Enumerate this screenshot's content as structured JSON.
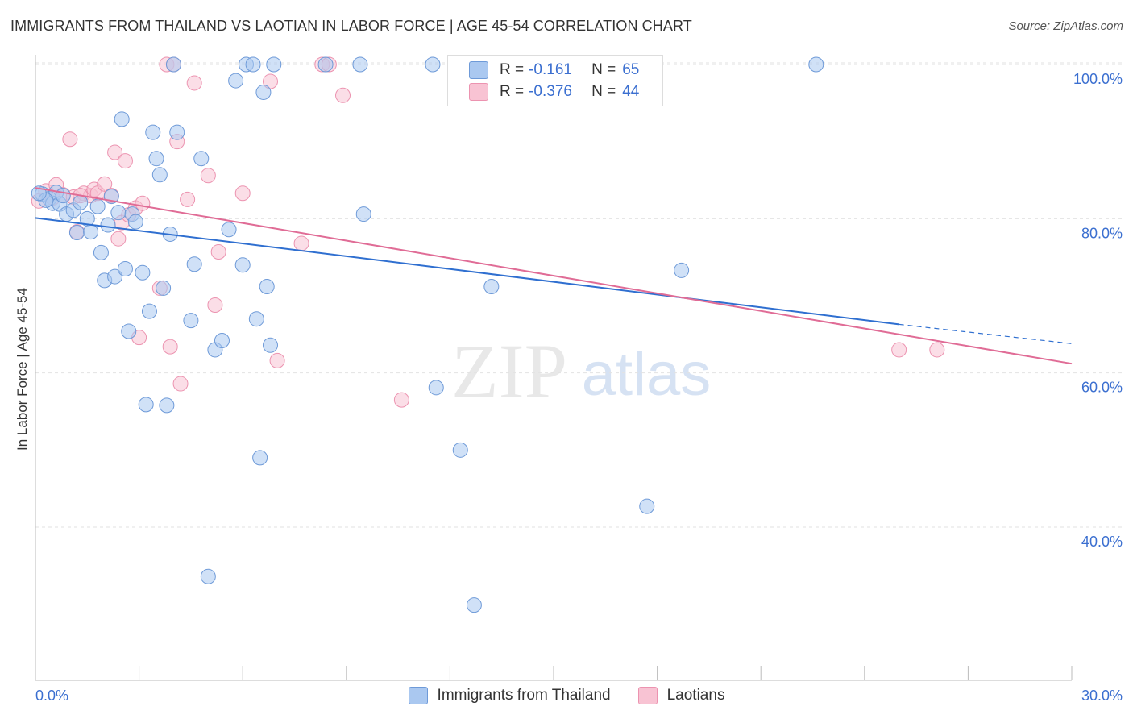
{
  "title": "IMMIGRANTS FROM THAILAND VS LAOTIAN IN LABOR FORCE | AGE 45-54 CORRELATION CHART",
  "source": "Source: ZipAtlas.com",
  "watermark": {
    "zip": "ZIP",
    "atlas": "atlas"
  },
  "legend": {
    "series1": {
      "r_label": "R =",
      "r_value": "-0.161",
      "n_label": "N =",
      "n_value": "65"
    },
    "series2": {
      "r_label": "R =",
      "r_value": "-0.376",
      "n_label": "N =",
      "n_value": "44"
    }
  },
  "bottom_legend": {
    "series1": "Immigrants from Thailand",
    "series2": "Laotians"
  },
  "colors": {
    "thailand_fill": "#aac8f0",
    "thailand_stroke": "#6e9ad8",
    "thailand_line": "#2f6fd0",
    "laotian_fill": "#f8c3d3",
    "laotian_stroke": "#ec93b0",
    "laotian_line": "#e06c96",
    "axis_text": "#3b6fd0",
    "grid": "#e2e2e2"
  },
  "chart_data": {
    "type": "scatter",
    "title": "IMMIGRANTS FROM THAILAND VS LAOTIAN IN LABOR FORCE | AGE 45-54 CORRELATION CHART",
    "xlabel": "",
    "ylabel": "In Labor Force | Age 45-54",
    "xlim": [
      0,
      30
    ],
    "ylim": [
      20,
      102
    ],
    "x_tick_labels": [
      "0.0%",
      "30.0%"
    ],
    "y_tick_labels": [
      "100.0%",
      "80.0%",
      "60.0%",
      "40.0%"
    ],
    "y_ticks": [
      100,
      80,
      60,
      40
    ],
    "grid": true,
    "legend_position": "top-center",
    "series": [
      {
        "name": "Immigrants from Thailand",
        "points": [
          [
            0.2,
            83.2
          ],
          [
            0.4,
            82.6
          ],
          [
            0.5,
            82.0
          ],
          [
            0.6,
            83.4
          ],
          [
            0.7,
            81.9
          ],
          [
            0.8,
            83.0
          ],
          [
            0.9,
            80.6
          ],
          [
            1.1,
            81.1
          ],
          [
            1.2,
            78.2
          ],
          [
            1.3,
            82.1
          ],
          [
            1.5,
            80.0
          ],
          [
            1.6,
            78.3
          ],
          [
            1.8,
            81.6
          ],
          [
            1.9,
            75.6
          ],
          [
            2.0,
            72.0
          ],
          [
            2.1,
            79.2
          ],
          [
            2.2,
            82.9
          ],
          [
            2.3,
            72.5
          ],
          [
            2.4,
            80.8
          ],
          [
            2.5,
            92.9
          ],
          [
            2.6,
            73.5
          ],
          [
            2.7,
            65.4
          ],
          [
            2.8,
            80.6
          ],
          [
            2.9,
            79.6
          ],
          [
            3.1,
            73.0
          ],
          [
            3.2,
            55.9
          ],
          [
            3.3,
            68.0
          ],
          [
            3.4,
            91.2
          ],
          [
            3.5,
            87.8
          ],
          [
            3.6,
            85.7
          ],
          [
            3.7,
            71.0
          ],
          [
            3.8,
            55.8
          ],
          [
            3.9,
            78.0
          ],
          [
            4.0,
            100.0
          ],
          [
            4.1,
            91.2
          ],
          [
            4.5,
            66.8
          ],
          [
            4.6,
            74.1
          ],
          [
            4.8,
            87.8
          ],
          [
            5.0,
            33.6
          ],
          [
            5.2,
            63.0
          ],
          [
            5.4,
            64.2
          ],
          [
            5.6,
            78.6
          ],
          [
            5.8,
            97.9
          ],
          [
            6.0,
            74.0
          ],
          [
            6.1,
            100.0
          ],
          [
            6.3,
            100.0
          ],
          [
            6.4,
            67.0
          ],
          [
            6.5,
            49.0
          ],
          [
            6.6,
            96.4
          ],
          [
            6.7,
            71.2
          ],
          [
            6.8,
            63.6
          ],
          [
            6.9,
            100.0
          ],
          [
            8.4,
            100.0
          ],
          [
            9.4,
            100.0
          ],
          [
            9.5,
            80.6
          ],
          [
            11.6,
            58.1
          ],
          [
            11.5,
            100.0
          ],
          [
            12.3,
            50.0
          ],
          [
            12.7,
            29.9
          ],
          [
            13.2,
            71.2
          ],
          [
            17.7,
            42.7
          ],
          [
            18.7,
            73.3
          ],
          [
            22.6,
            100.0
          ],
          [
            0.3,
            82.4
          ],
          [
            0.1,
            83.3
          ]
        ]
      },
      {
        "name": "Laotians",
        "points": [
          [
            0.1,
            82.3
          ],
          [
            0.3,
            83.6
          ],
          [
            0.5,
            82.7
          ],
          [
            0.6,
            84.4
          ],
          [
            0.8,
            83.1
          ],
          [
            1.0,
            90.3
          ],
          [
            1.1,
            82.8
          ],
          [
            1.2,
            78.3
          ],
          [
            1.4,
            83.3
          ],
          [
            1.6,
            83.0
          ],
          [
            1.7,
            83.8
          ],
          [
            1.8,
            83.3
          ],
          [
            2.0,
            84.5
          ],
          [
            2.2,
            83.0
          ],
          [
            2.3,
            88.6
          ],
          [
            2.4,
            77.4
          ],
          [
            2.5,
            79.5
          ],
          [
            2.6,
            87.5
          ],
          [
            2.7,
            80.5
          ],
          [
            2.9,
            81.4
          ],
          [
            3.0,
            64.6
          ],
          [
            3.1,
            82.0
          ],
          [
            3.6,
            71.0
          ],
          [
            3.8,
            100.0
          ],
          [
            3.9,
            63.4
          ],
          [
            4.0,
            100.0
          ],
          [
            4.1,
            90.0
          ],
          [
            4.2,
            58.6
          ],
          [
            4.4,
            82.5
          ],
          [
            4.6,
            97.6
          ],
          [
            5.0,
            85.6
          ],
          [
            5.2,
            68.8
          ],
          [
            5.3,
            75.7
          ],
          [
            6.0,
            83.3
          ],
          [
            6.8,
            97.8
          ],
          [
            7.0,
            61.6
          ],
          [
            7.7,
            76.8
          ],
          [
            8.3,
            100.0
          ],
          [
            8.5,
            100.0
          ],
          [
            8.9,
            96.0
          ],
          [
            10.6,
            56.5
          ],
          [
            25.0,
            63.0
          ],
          [
            26.1,
            63.0
          ],
          [
            1.3,
            83.0
          ]
        ]
      }
    ],
    "trendlines": [
      {
        "name": "Immigrants from Thailand",
        "x1": 0,
        "y1": 80.1,
        "x2": 25.0,
        "y2": 66.3,
        "dashed_to_x": 30,
        "dashed_to_y": 63.8
      },
      {
        "name": "Laotians",
        "x1": 0,
        "y1": 84.0,
        "x2": 30,
        "y2": 61.2
      }
    ]
  }
}
